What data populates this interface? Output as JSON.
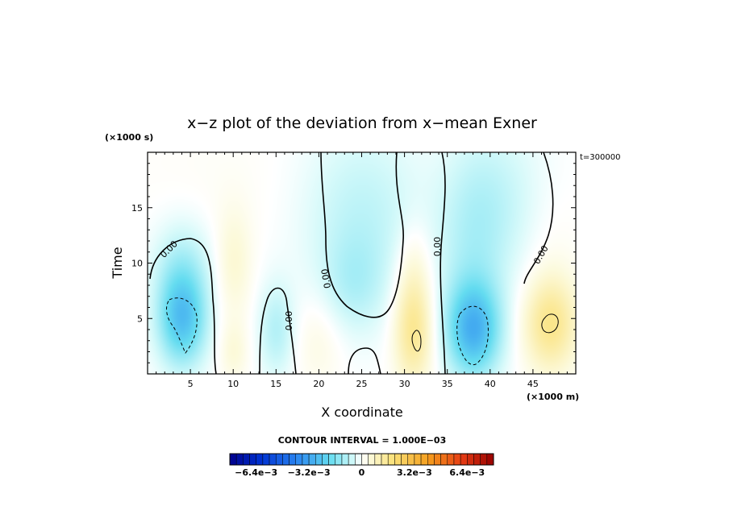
{
  "chart_data": {
    "type": "heatmap",
    "title": "x−z plot of the deviation from x−mean Exner",
    "xlabel": "X coordinate",
    "ylabel": "Time",
    "x_unit": "(×1000 m)",
    "y_unit": "(×1000 s)",
    "time_label": "t=300000",
    "xlim": [
      0,
      50
    ],
    "ylim": [
      0,
      20
    ],
    "x_ticks": [
      5,
      10,
      15,
      20,
      25,
      30,
      35,
      40,
      45
    ],
    "y_ticks": [
      5,
      10,
      15
    ],
    "contour_interval_label": "CONTOUR INTERVAL = 1.000E−03",
    "contour_label": "0.00",
    "colorbar": {
      "min": -0.008,
      "max": 0.008,
      "tick_labels": [
        "−6.4e−3",
        "−3.2e−3",
        "0",
        "3.2e−3",
        "6.4e−3"
      ],
      "tick_values": [
        -0.0064,
        -0.0032,
        0,
        0.0032,
        0.0064
      ]
    },
    "field_features": [
      {
        "x": 4,
        "y": 5,
        "value": -0.0025,
        "sx": 2.0,
        "sy": 3.0
      },
      {
        "x": 4,
        "y": 10,
        "value": -0.0008,
        "sx": 2.5,
        "sy": 3.0
      },
      {
        "x": 10,
        "y": 10,
        "value": 0.0006,
        "sx": 1.5,
        "sy": 3.5
      },
      {
        "x": 10,
        "y": 2,
        "value": 0.0005,
        "sx": 1.2,
        "sy": 2.0
      },
      {
        "x": 15,
        "y": 4,
        "value": -0.0009,
        "sx": 1.5,
        "sy": 3.0
      },
      {
        "x": 20,
        "y": 3,
        "value": 0.0004,
        "sx": 2.0,
        "sy": 3.0
      },
      {
        "x": 25,
        "y": 14,
        "value": -0.0008,
        "sx": 5.0,
        "sy": 6.0
      },
      {
        "x": 24,
        "y": 8,
        "value": -0.0006,
        "sx": 2.5,
        "sy": 3.0
      },
      {
        "x": 31,
        "y": 4,
        "value": 0.0016,
        "sx": 1.6,
        "sy": 3.5
      },
      {
        "x": 31,
        "y": 10,
        "value": 0.0005,
        "sx": 1.5,
        "sy": 3.0
      },
      {
        "x": 38,
        "y": 4,
        "value": -0.0027,
        "sx": 2.2,
        "sy": 3.0
      },
      {
        "x": 38,
        "y": 12,
        "value": -0.0008,
        "sx": 3.0,
        "sy": 6.0
      },
      {
        "x": 42,
        "y": 16,
        "value": -0.0005,
        "sx": 4.0,
        "sy": 5.0
      },
      {
        "x": 47,
        "y": 4.5,
        "value": 0.0016,
        "sx": 2.2,
        "sy": 3.0
      },
      {
        "x": 47,
        "y": 12,
        "value": 0.0002,
        "sx": 2.5,
        "sy": 5.0
      },
      {
        "x": 8,
        "y": 17,
        "value": 0.0001,
        "sx": 8.0,
        "sy": 5.0
      }
    ]
  }
}
